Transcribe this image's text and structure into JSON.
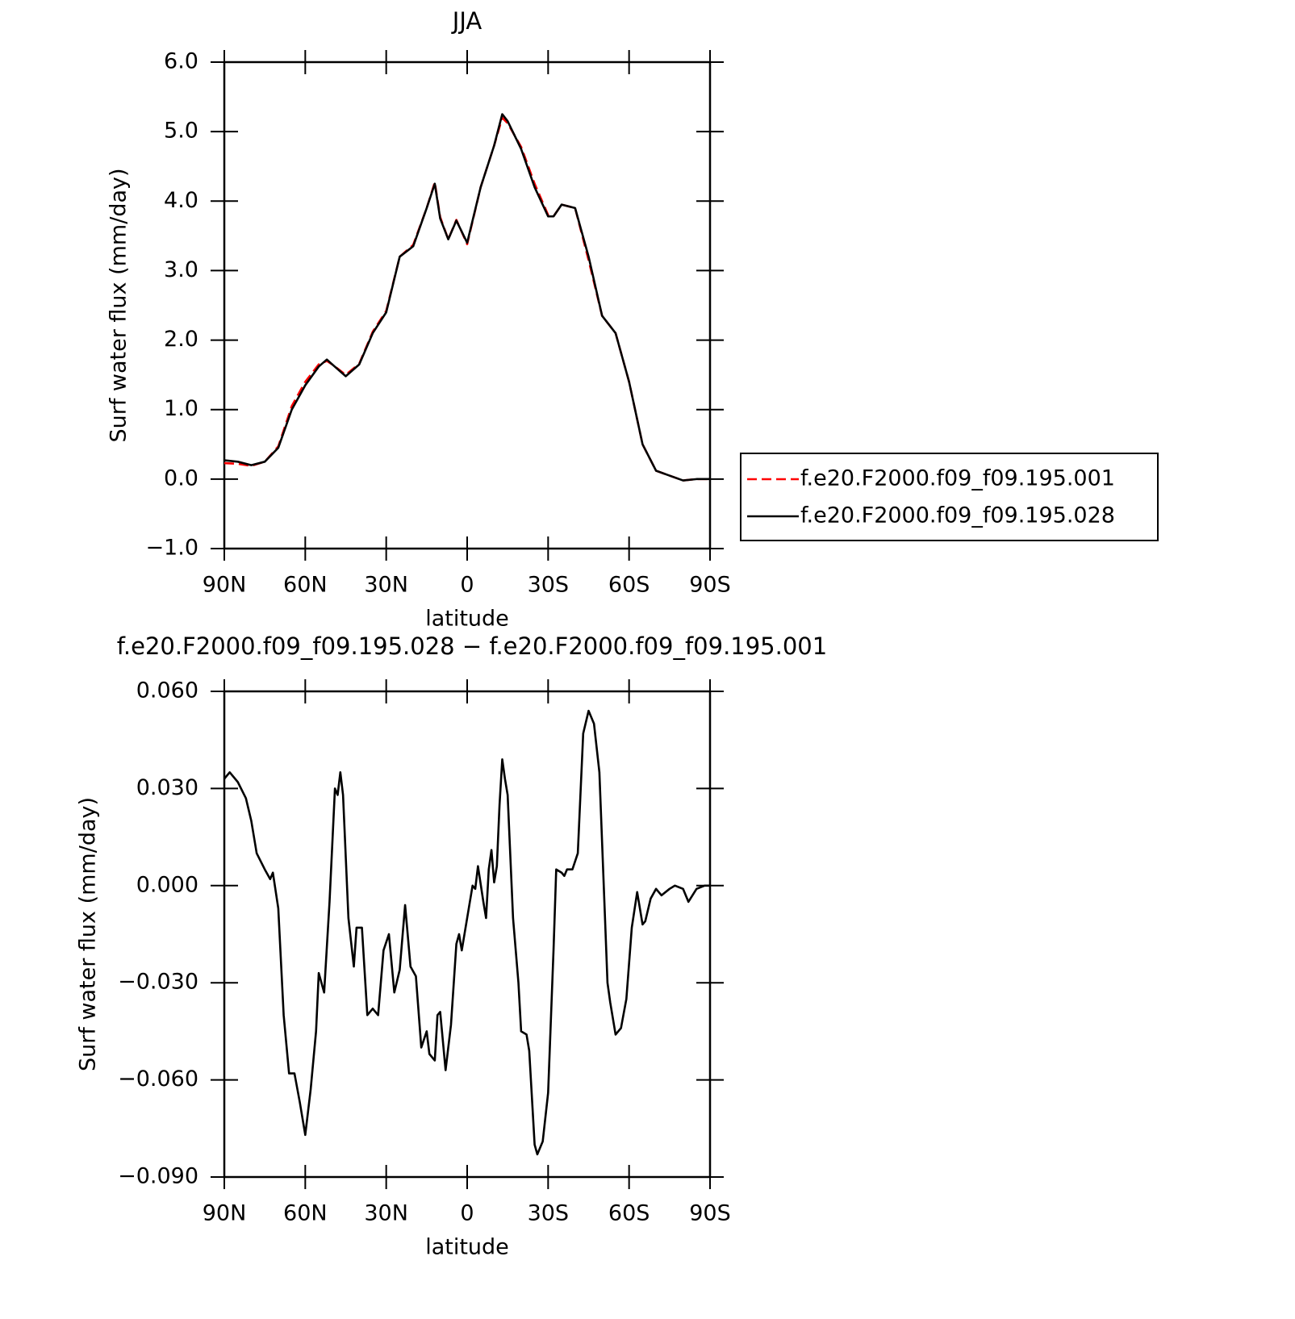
{
  "chart_data": [
    {
      "type": "line",
      "title": "JJA",
      "x_label": "latitude",
      "y_label": "Surf water flux (mm/day)",
      "x": [
        90,
        85,
        80,
        75,
        70,
        65,
        60,
        55,
        52,
        50,
        45,
        40,
        35,
        30,
        25,
        20,
        15,
        12,
        10,
        7,
        4,
        0,
        -5,
        -10,
        -13,
        -15,
        -20,
        -25,
        -30,
        -32,
        -35,
        -40,
        -45,
        -50,
        -55,
        -60,
        -65,
        -70,
        -75,
        -80,
        -85,
        -90
      ],
      "series": [
        {
          "name": "f.e20.F2000.f09_f09.195.001",
          "color": "#ff0000",
          "dash": "dashed",
          "values": [
            0.23,
            0.22,
            0.19,
            0.25,
            0.47,
            1.05,
            1.4,
            1.65,
            1.7,
            1.65,
            1.5,
            1.66,
            2.12,
            2.42,
            3.2,
            3.37,
            3.9,
            4.27,
            3.77,
            3.45,
            3.73,
            3.38,
            4.2,
            4.8,
            5.2,
            5.12,
            4.78,
            4.25,
            3.8,
            3.78,
            3.95,
            3.9,
            3.15,
            2.35,
            2.1,
            1.4,
            0.5,
            0.12,
            0.05,
            -0.02,
            0.0,
            0.0
          ]
        },
        {
          "name": "f.e20.F2000.f09_f09.195.028",
          "color": "#000000",
          "dash": "solid",
          "values": [
            0.27,
            0.25,
            0.2,
            0.25,
            0.45,
            1.0,
            1.35,
            1.62,
            1.72,
            1.65,
            1.48,
            1.65,
            2.1,
            2.4,
            3.2,
            3.35,
            3.9,
            4.25,
            3.75,
            3.45,
            3.72,
            3.4,
            4.2,
            4.8,
            5.25,
            5.15,
            4.75,
            4.2,
            3.78,
            3.78,
            3.95,
            3.9,
            3.2,
            2.35,
            2.1,
            1.4,
            0.5,
            0.12,
            0.05,
            -0.02,
            0.0,
            0.0
          ]
        }
      ],
      "xlim": [
        90,
        -90
      ],
      "xticks": [
        {
          "value": 90,
          "label": "90N"
        },
        {
          "value": 60,
          "label": "60N"
        },
        {
          "value": 30,
          "label": "30N"
        },
        0,
        {
          "value": -30,
          "label": "30S"
        },
        {
          "value": -60,
          "label": "60S"
        },
        {
          "value": -90,
          "label": "90S"
        }
      ],
      "ylim": [
        -1,
        6
      ],
      "yticks": [
        {
          "value": -1,
          "label": "−1.0"
        },
        {
          "value": 0,
          "label": "0.0"
        },
        {
          "value": 1,
          "label": "1.0"
        },
        {
          "value": 2,
          "label": "2.0"
        },
        {
          "value": 3,
          "label": "3.0"
        },
        {
          "value": 4,
          "label": "4.0"
        },
        {
          "value": 5,
          "label": "5.0"
        },
        {
          "value": 6,
          "label": "6.0"
        }
      ],
      "legend": "right"
    },
    {
      "type": "line",
      "title": "f.e20.F2000.f09_f09.195.028 − f.e20.F2000.f09_f09.195.001",
      "x_label": "latitude",
      "y_label": "Surf water flux (mm/day)",
      "x": [
        90,
        88,
        85,
        82,
        80,
        78,
        75,
        73,
        72,
        70,
        68,
        66,
        64,
        62,
        60,
        58,
        56,
        55,
        53,
        51,
        49,
        48,
        47,
        46,
        44,
        42,
        41,
        39,
        37,
        35,
        33,
        31,
        29,
        27,
        25,
        23,
        21,
        19,
        17,
        15,
        14,
        12,
        11,
        10,
        8,
        6,
        4,
        3,
        2,
        0,
        -2,
        -3,
        -4,
        -6,
        -7,
        -8,
        -9,
        -10,
        -11,
        -12,
        -13,
        -14,
        -15,
        -17,
        -19,
        -20,
        -22,
        -23,
        -25,
        -26,
        -28,
        -30,
        -32,
        -33,
        -35,
        -36,
        -37,
        -39,
        -41,
        -43,
        -45,
        -47,
        -49,
        -52,
        -53,
        -55,
        -57,
        -59,
        -61,
        -63,
        -65,
        -66,
        -68,
        -70,
        -72,
        -75,
        -77,
        -80,
        -82,
        -85,
        -88,
        -90
      ],
      "series": [
        {
          "name": null,
          "color": "#000000",
          "dash": "solid",
          "values": [
            0.033,
            0.035,
            0.032,
            0.027,
            0.02,
            0.01,
            0.005,
            0.002,
            0.004,
            -0.007,
            -0.04,
            -0.058,
            -0.058,
            -0.067,
            -0.077,
            -0.063,
            -0.045,
            -0.027,
            -0.033,
            -0.005,
            0.03,
            0.028,
            0.035,
            0.028,
            -0.01,
            -0.025,
            -0.013,
            -0.013,
            -0.04,
            -0.038,
            -0.04,
            -0.02,
            -0.015,
            -0.033,
            -0.026,
            -0.006,
            -0.025,
            -0.028,
            -0.05,
            -0.045,
            -0.052,
            -0.054,
            -0.04,
            -0.039,
            -0.057,
            -0.043,
            -0.018,
            -0.015,
            -0.02,
            -0.01,
            0.0,
            -0.001,
            0.006,
            -0.005,
            -0.01,
            0.005,
            0.011,
            0.001,
            0.006,
            0.025,
            0.039,
            0.033,
            0.028,
            -0.01,
            -0.03,
            -0.045,
            -0.046,
            -0.051,
            -0.08,
            -0.083,
            -0.079,
            -0.064,
            -0.02,
            0.005,
            0.004,
            0.003,
            0.005,
            0.005,
            0.01,
            0.047,
            0.054,
            0.05,
            0.035,
            -0.03,
            -0.036,
            -0.046,
            -0.044,
            -0.035,
            -0.013,
            -0.002,
            -0.012,
            -0.011,
            -0.004,
            -0.001,
            -0.003,
            -0.001,
            0.0,
            -0.001,
            -0.005,
            -0.001,
            0.0,
            0.0
          ]
        }
      ],
      "xlim": [
        90,
        -90
      ],
      "xticks": [
        {
          "value": 90,
          "label": "90N"
        },
        {
          "value": 60,
          "label": "60N"
        },
        {
          "value": 30,
          "label": "30N"
        },
        0,
        {
          "value": -30,
          "label": "30S"
        },
        {
          "value": -60,
          "label": "60S"
        },
        {
          "value": -90,
          "label": "90S"
        }
      ],
      "ylim": [
        -0.09,
        0.06
      ],
      "yticks": [
        {
          "value": -0.09,
          "label": "−0.090"
        },
        {
          "value": -0.06,
          "label": "−0.060"
        },
        {
          "value": -0.03,
          "label": "−0.030"
        },
        {
          "value": 0,
          "label": "0.000"
        },
        {
          "value": 0.03,
          "label": "0.030"
        },
        {
          "value": 0.06,
          "label": "0.060"
        }
      ]
    }
  ]
}
